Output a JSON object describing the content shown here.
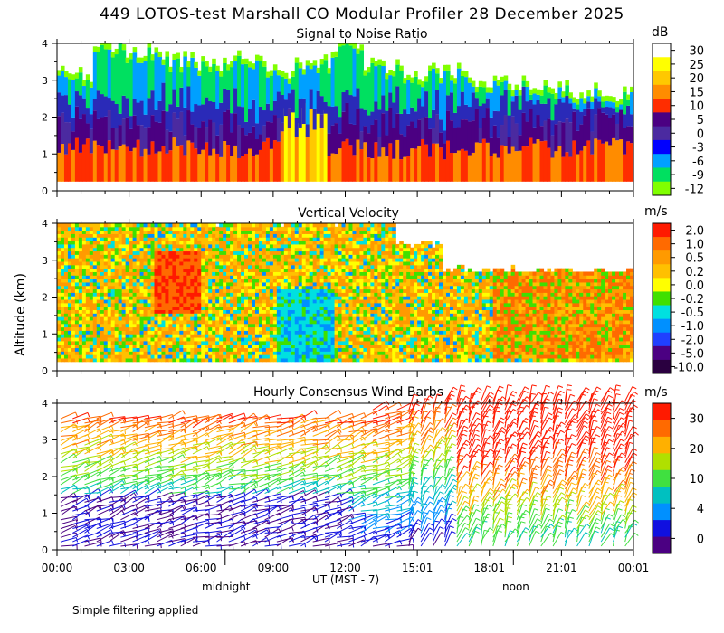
{
  "title": "449 LOTOS-test Marshall CO Modular Profiler 28 December 2025",
  "footer_note": "Simple filtering applied",
  "xaxis": {
    "label": "UT  (MST - 7)",
    "ticks": [
      "00:00",
      "03:00",
      "06:00",
      "09:00",
      "12:00",
      "15:01",
      "18:01",
      "21:01",
      "00:01"
    ],
    "local_labels": [
      "midnight",
      "noon"
    ]
  },
  "ylabel": "Altitude (km)",
  "chart_data": [
    {
      "type": "heatmap",
      "title": "Signal to Noise Ratio",
      "units": "dB",
      "ylim": [
        0,
        4
      ],
      "yticks": [
        "0",
        "1",
        "2",
        "3",
        "4"
      ],
      "colorbar": {
        "labels": [
          "30",
          "25",
          "20",
          "15",
          "10",
          "5",
          "0",
          "-3",
          "-6",
          "-9",
          "-12"
        ],
        "colors": [
          "#ffffff",
          "#ffff00",
          "#ffc800",
          "#ff8c00",
          "#ff2d00",
          "#4b0082",
          "#4b2aa0",
          "#0000ff",
          "#00a0ff",
          "#00e060",
          "#80ff00"
        ]
      },
      "x_hours": [
        0,
        3,
        6,
        9,
        12,
        15,
        18,
        21,
        24
      ],
      "data_top_km": [
        3.2,
        3.9,
        3.8,
        3.6,
        3.5,
        3.7,
        3.3,
        3.5,
        3.9,
        3.4,
        3.2,
        3.3,
        3.0,
        2.9,
        2.8,
        2.7,
        2.6
      ],
      "annotations": [
        "high SNR near 09:00-11:00 below 2.5 km"
      ]
    },
    {
      "type": "heatmap",
      "title": "Vertical Velocity",
      "units": "m/s",
      "ylim": [
        0,
        4
      ],
      "yticks": [
        "0",
        "1",
        "2",
        "3",
        "4"
      ],
      "colorbar": {
        "labels": [
          "2.0",
          "1.0",
          "0.5",
          "0.2",
          "0.0",
          "-0.2",
          "-0.5",
          "-1.0",
          "-2.0",
          "-5.0",
          "-10.0"
        ],
        "colors": [
          "#ff1a00",
          "#ff6a00",
          "#ff9a00",
          "#ffc000",
          "#ffff00",
          "#40e000",
          "#00e0e0",
          "#0090ff",
          "#2040ff",
          "#4b0082",
          "#2a0040"
        ]
      }
    },
    {
      "type": "scatter",
      "title": "Hourly Consensus Wind Barbs",
      "units": "m/s",
      "ylim": [
        0,
        4
      ],
      "yticks": [
        "0",
        "1",
        "2",
        "3",
        "4"
      ],
      "colorbar": {
        "labels": [
          "30",
          "20",
          "10",
          "4",
          "0"
        ],
        "colors": [
          "#ff1a00",
          "#ff6a00",
          "#ffb000",
          "#b0e000",
          "#40e040",
          "#00c0c0",
          "#0090ff",
          "#1010e0",
          "#4b0082"
        ]
      }
    }
  ]
}
